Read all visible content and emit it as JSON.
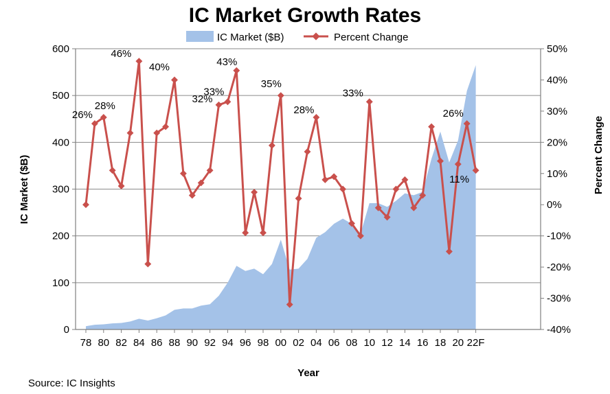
{
  "chart_data": {
    "type": "area+line",
    "title": "IC Market Growth Rates",
    "xlabel": "Year",
    "ylabel_left": "IC Market ($B)",
    "ylabel_right": "Percent Change",
    "ylim_left": [
      0,
      600
    ],
    "ylim_right": [
      -40,
      50
    ],
    "yticks_left": [
      0,
      100,
      200,
      300,
      400,
      500,
      600
    ],
    "yticks_right": [
      "-40%",
      "-30%",
      "-20%",
      "-10%",
      "0%",
      "10%",
      "20%",
      "30%",
      "40%",
      "50%"
    ],
    "yticks_right_values": [
      -40,
      -30,
      -20,
      -10,
      0,
      10,
      20,
      30,
      40,
      50
    ],
    "grid": "horizontal",
    "legend_position": "top",
    "x_tick_labels": [
      "78",
      "80",
      "82",
      "84",
      "86",
      "88",
      "90",
      "92",
      "94",
      "96",
      "98",
      "00",
      "02",
      "04",
      "06",
      "08",
      "10",
      "12",
      "14",
      "16",
      "18",
      "20",
      "22F"
    ],
    "x_years": [
      1978,
      1979,
      1980,
      1981,
      1982,
      1983,
      1984,
      1985,
      1986,
      1987,
      1988,
      1989,
      1990,
      1991,
      1992,
      1993,
      1994,
      1995,
      1996,
      1997,
      1998,
      1999,
      2000,
      2001,
      2002,
      2003,
      2004,
      2005,
      2006,
      2007,
      2008,
      2009,
      2010,
      2011,
      2012,
      2013,
      2014,
      2015,
      2016,
      2017,
      2018,
      2019,
      2020,
      2021,
      2022
    ],
    "series": [
      {
        "name": "IC Market ($B)",
        "type": "area",
        "axis": "left",
        "color": "#a4c2e8",
        "values": [
          7,
          10,
          11,
          13,
          14,
          17,
          23,
          19,
          24,
          30,
          42,
          45,
          45,
          51,
          54,
          72,
          100,
          136,
          125,
          130,
          118,
          140,
          192,
          128,
          130,
          151,
          196,
          208,
          226,
          237,
          226,
          205,
          270,
          270,
          262,
          275,
          291,
          287,
          294,
          365,
          423,
          357,
          404,
          510,
          565
        ]
      },
      {
        "name": "Percent Change",
        "type": "line",
        "axis": "right",
        "color": "#c9504c",
        "values": [
          0,
          26,
          28,
          11,
          6,
          23,
          46,
          -19,
          23,
          25,
          40,
          10,
          3,
          7,
          11,
          32,
          33,
          43,
          -9,
          4,
          -9,
          19,
          35,
          -32,
          2,
          17,
          28,
          8,
          9,
          5,
          -6,
          -10,
          33,
          -1,
          -4,
          5,
          8,
          -1,
          3,
          25,
          14,
          -15,
          13,
          26,
          11
        ]
      }
    ],
    "annotations": [
      {
        "year": 1979,
        "value": 26,
        "text": "26%"
      },
      {
        "year": 1980,
        "value": 28,
        "text": "28%"
      },
      {
        "year": 1984,
        "value": 46,
        "text": "46%"
      },
      {
        "year": 1988,
        "value": 40,
        "text": "40%"
      },
      {
        "year": 1993,
        "value": 32,
        "text": "32%"
      },
      {
        "year": 1994,
        "value": 33,
        "text": "33%"
      },
      {
        "year": 1995,
        "value": 43,
        "text": "43%"
      },
      {
        "year": 2000,
        "value": 35,
        "text": "35%"
      },
      {
        "year": 2004,
        "value": 28,
        "text": "28%"
      },
      {
        "year": 2010,
        "value": 33,
        "text": "33%"
      },
      {
        "year": 2021,
        "value": 26,
        "text": "26%"
      },
      {
        "year": 2022,
        "value": 11,
        "text": "11%"
      }
    ],
    "source": "Source:  IC Insights"
  }
}
